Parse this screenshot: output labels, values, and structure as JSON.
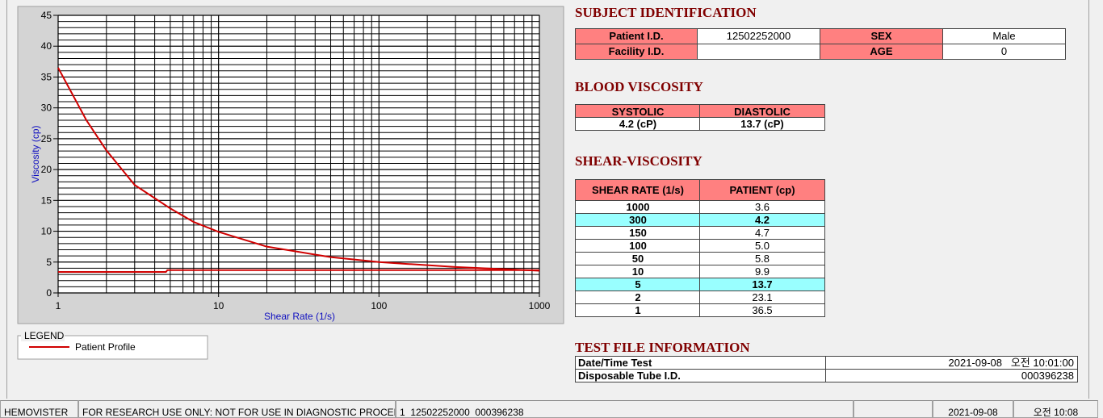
{
  "chart_data": {
    "type": "line",
    "xlabel": "Shear Rate (1/s)",
    "ylabel": "Viscosity (cp)",
    "xscale": "log",
    "xlim": [
      1,
      1000
    ],
    "xticks": [
      1,
      10,
      100,
      1000
    ],
    "x_minor_ticks": [
      2,
      3,
      4,
      5,
      6,
      7,
      8,
      9,
      20,
      30,
      40,
      50,
      60,
      70,
      80,
      90,
      200,
      300,
      400,
      500,
      600,
      700,
      800,
      900
    ],
    "ylim": [
      0,
      45
    ],
    "yticks": [
      0,
      5,
      10,
      15,
      20,
      25,
      30,
      35,
      40,
      45
    ],
    "y_minor_ticks": [
      1,
      2,
      3,
      4,
      6,
      7,
      8,
      9,
      11,
      12,
      13,
      14,
      16,
      17,
      18,
      19,
      21,
      22,
      23,
      24,
      26,
      27,
      28,
      29,
      31,
      32,
      33,
      34,
      36,
      37,
      38,
      39,
      41,
      42,
      43,
      44
    ],
    "grid": true,
    "legend_title": "LEGEND",
    "series": [
      {
        "name": "Patient Profile",
        "color": "#d00000",
        "x": [
          1,
          1.5,
          2,
          3,
          5,
          7,
          10,
          20,
          50,
          100,
          150,
          300,
          1000
        ],
        "values": [
          36.5,
          28,
          23.1,
          17.5,
          13.7,
          11.5,
          9.9,
          7.5,
          5.8,
          5.0,
          4.7,
          4.2,
          3.6
        ]
      },
      {
        "color": "#d00000",
        "x": [
          1,
          4.7,
          4.8,
          1000
        ],
        "values": [
          3.4,
          3.4,
          3.7,
          3.7
        ]
      }
    ]
  },
  "subject": {
    "title": "SUBJECT IDENTIFICATION",
    "rows": [
      {
        "label": "Patient I.D.",
        "value": "12502252000",
        "label2": "SEX",
        "value2": "Male"
      },
      {
        "label": "Facility I.D.",
        "label2": "AGE",
        "value2": "0"
      }
    ]
  },
  "blood_viscosity": {
    "title": "BLOOD VISCOSITY",
    "headers": [
      "SYSTOLIC",
      "DIASTOLIC"
    ],
    "values": [
      "4.2 (cP)",
      "13.7 (cP)"
    ]
  },
  "shear_viscosity": {
    "title": "SHEAR-VISCOSITY",
    "headers": [
      "SHEAR RATE (1/s)",
      "PATIENT (cp)"
    ],
    "rows": [
      {
        "rate": "1000",
        "value": "3.6"
      },
      {
        "rate": "300",
        "value": "4.2",
        "highlight": true
      },
      {
        "rate": "150",
        "value": "4.7"
      },
      {
        "rate": "100",
        "value": "5.0"
      },
      {
        "rate": "50",
        "value": "5.8"
      },
      {
        "rate": "10",
        "value": "9.9"
      },
      {
        "rate": "5",
        "value": "13.7",
        "highlight": true
      },
      {
        "rate": "2",
        "value": "23.1"
      },
      {
        "rate": "1",
        "value": "36.5"
      }
    ]
  },
  "test_file": {
    "title": "TEST FILE INFORMATION",
    "rows": [
      [
        "Date/Time Test",
        "2021-09-08   오전 10:01:00"
      ],
      [
        "Disposable Tube I.D.",
        "000396238"
      ]
    ]
  },
  "status_bar": [
    "HEMOVISTER",
    "FOR RESEARCH USE ONLY: NOT FOR USE IN DIAGNOSTIC PROCEDURES",
    "1  12502252000  000396238",
    "2021-09-08",
    "오전 10:08"
  ]
}
